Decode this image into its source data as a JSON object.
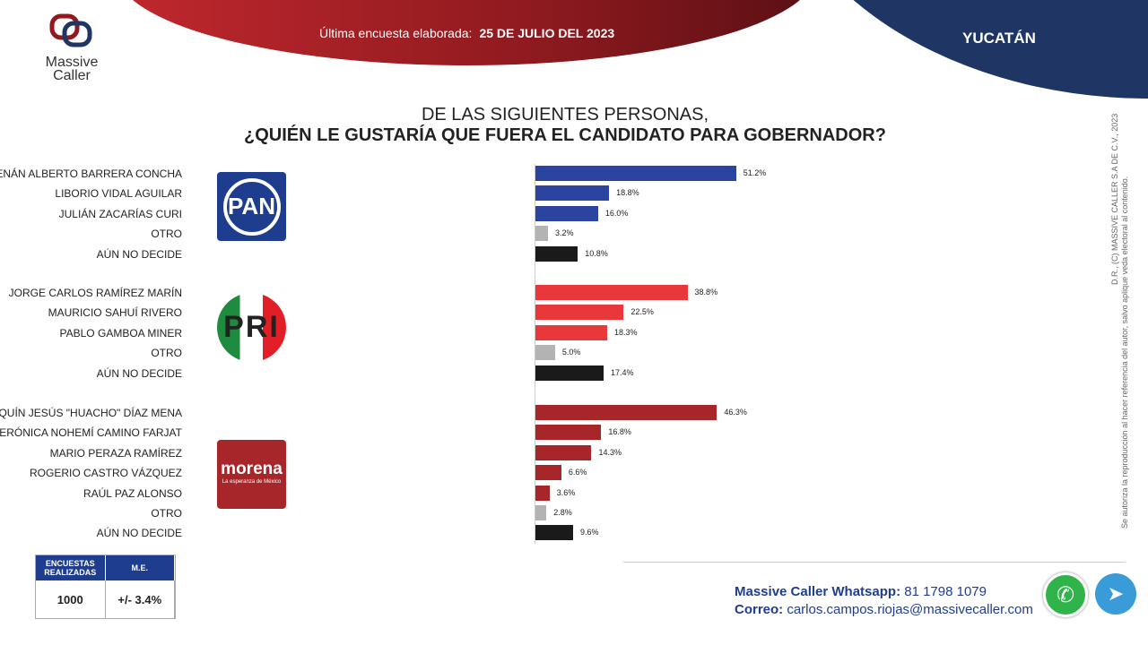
{
  "header": {
    "survey_label": "Última encuesta elaborada:",
    "survey_date": "25 DE JULIO DEL 2023",
    "state": "YUCATÁN"
  },
  "logo": {
    "line1": "Massive",
    "line2": "Caller"
  },
  "title": {
    "line1": "DE LAS SIGUIENTES PERSONAS,",
    "line2": "¿QUIÉN LE GUSTARÍA QUE FUERA EL CANDIDATO PARA GOBERNADOR?"
  },
  "parties": {
    "pan": "PAN",
    "pri": "PRI",
    "morena": "morena",
    "morena_tag": "La esperanza de México"
  },
  "colors": {
    "pan": "#2a44a0",
    "pri": "#e8383b",
    "morena": "#a7262a",
    "otro": "#b3b3b3",
    "undecided": "#1a1a1a"
  },
  "chart_data": {
    "type": "bar",
    "orientation": "horizontal",
    "unit": "%",
    "xlim": [
      0,
      60
    ],
    "title": "¿QUIÉN LE GUSTARÍA QUE FUERA EL CANDIDATO PARA GOBERNADOR?",
    "groups": [
      {
        "party": "PAN",
        "items": [
          {
            "label": "RENÁN ALBERTO BARRERA CONCHA",
            "value": 51.2,
            "text": "51.2%",
            "kind": "pan"
          },
          {
            "label": "LIBORIO  VIDAL AGUILAR",
            "value": 18.8,
            "text": "18.8%",
            "kind": "pan"
          },
          {
            "label": "JULIÁN ZACARÍAS CURI",
            "value": 16.0,
            "text": "16.0%",
            "kind": "pan"
          },
          {
            "label": "OTRO",
            "value": 3.2,
            "text": "3.2%",
            "kind": "otro"
          },
          {
            "label": "AÚN NO DECIDE",
            "value": 10.8,
            "text": "10.8%",
            "kind": "undecided"
          }
        ]
      },
      {
        "party": "PRI",
        "items": [
          {
            "label": "JORGE CARLOS RAMÍREZ MARÍN",
            "value": 38.8,
            "text": "38.8%",
            "kind": "pri"
          },
          {
            "label": "MAURICIO SAHUÍ RIVERO",
            "value": 22.5,
            "text": "22.5%",
            "kind": "pri"
          },
          {
            "label": "PABLO GAMBOA MINER",
            "value": 18.3,
            "text": "18.3%",
            "kind": "pri"
          },
          {
            "label": "OTRO",
            "value": 5.0,
            "text": "5.0%",
            "kind": "otro"
          },
          {
            "label": "AÚN NO DECIDE",
            "value": 17.4,
            "text": "17.4%",
            "kind": "undecided"
          }
        ]
      },
      {
        "party": "MORENA",
        "items": [
          {
            "label": "JOAQUÍN JESÚS \"HUACHO\" DÍAZ MENA",
            "value": 46.3,
            "text": "46.3%",
            "kind": "morena"
          },
          {
            "label": "VERÓNICA NOHEMÍ CAMINO FARJAT",
            "value": 16.8,
            "text": "16.8%",
            "kind": "morena"
          },
          {
            "label": "MARIO PERAZA RAMÍREZ",
            "value": 14.3,
            "text": "14.3%",
            "kind": "morena"
          },
          {
            "label": "ROGERIO CASTRO VÁZQUEZ",
            "value": 6.6,
            "text": "6.6%",
            "kind": "morena"
          },
          {
            "label": "RAÚL PAZ ALONSO",
            "value": 3.6,
            "text": "3.6%",
            "kind": "morena"
          },
          {
            "label": "OTRO",
            "value": 2.8,
            "text": "2.8%",
            "kind": "otro"
          },
          {
            "label": "AÚN NO DECIDE",
            "value": 9.6,
            "text": "9.6%",
            "kind": "undecided"
          }
        ]
      }
    ]
  },
  "copyright": {
    "line1": "D.R., (C) MASSIVE CALLER S.A DE C.V., 2023",
    "line2": "Se autoriza la reproducción al hacer referencia del autor, salvo aplique veda electoral al contenido."
  },
  "stats": {
    "h1": "ENCUESTAS REALIZADAS",
    "h2": "M.E.",
    "v1": "1000",
    "v2": "+/- 3.4%"
  },
  "contact": {
    "wa_label": "Massive Caller Whatsapp:",
    "wa_number": "81 1798 1079",
    "mail_label": "Correo:",
    "mail": "carlos.campos.riojas@massivecaller.com"
  }
}
